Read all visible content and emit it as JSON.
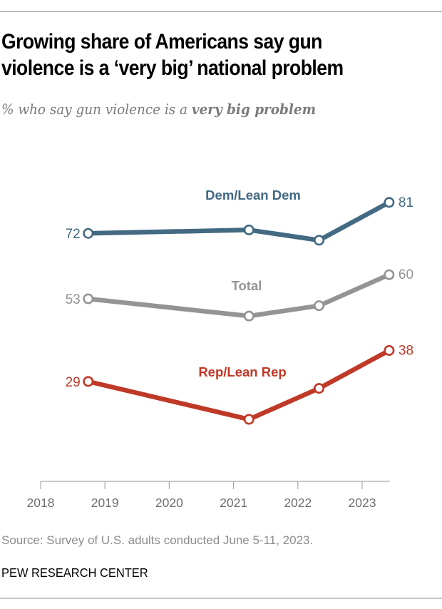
{
  "header": {
    "title_line1": "Growing share of Americans say gun",
    "title_line2": "violence is a ‘very big’ national problem",
    "subtitle_prefix": "% who say gun violence is a ",
    "subtitle_emphasis": "very big problem"
  },
  "footer": {
    "source": "Source: Survey of U.S. adults conducted June 5-11, 2023.",
    "brand": "PEW RESEARCH CENTER"
  },
  "chart_data": {
    "type": "line",
    "title": "Growing share of Americans say gun violence is a ‘very big’ national problem",
    "subtitle": "% who say gun violence is a very big problem",
    "xlabel": "",
    "ylabel": "",
    "x_tick_labels": [
      "2018",
      "2019",
      "2020",
      "2021",
      "2022",
      "2023"
    ],
    "x_ticks": [
      2018,
      2019,
      2020,
      2021,
      2022,
      2023
    ],
    "xlim": [
      2018,
      2023.43
    ],
    "ylim": [
      0,
      100
    ],
    "grid": false,
    "legend": "inline labels",
    "x": [
      2018.74,
      2021.24,
      2022.33,
      2023.42
    ],
    "series": [
      {
        "name": "Dem/Lean Dem",
        "color": "#436983",
        "values": [
          72,
          73,
          70,
          81
        ],
        "labeled_points": {
          "first": "72",
          "last": "81"
        }
      },
      {
        "name": "Total",
        "color": "#949494",
        "values": [
          53,
          48,
          51,
          60
        ],
        "labeled_points": {
          "first": "53",
          "last": "60"
        }
      },
      {
        "name": "Rep/Lean Rep",
        "color": "#bf3927",
        "values": [
          29,
          18,
          27,
          38
        ],
        "labeled_points": {
          "first": "29",
          "last": "38"
        }
      }
    ]
  }
}
